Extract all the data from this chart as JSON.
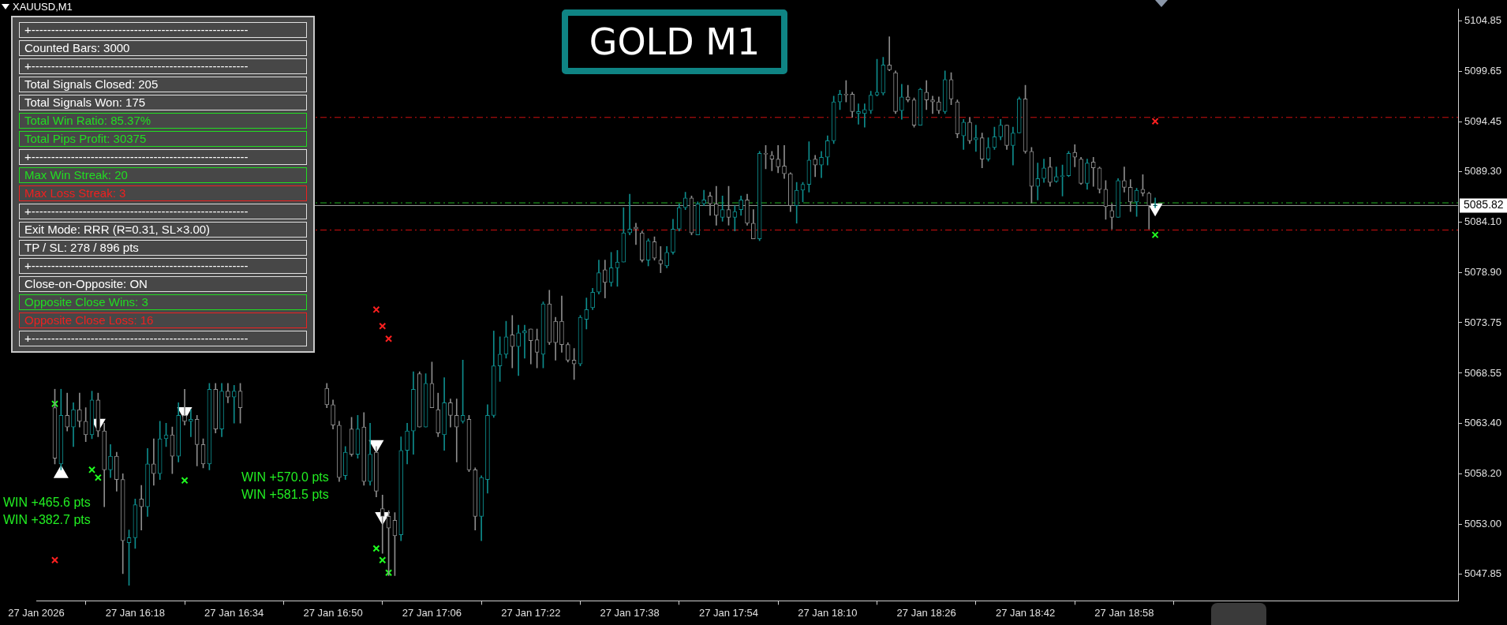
{
  "chart_data": {
    "type": "candlestick",
    "title": "GOLD M1",
    "subtitle": "XAUUSD,M1",
    "x": [
      "2026-01-27T16:05",
      "2026-01-27T16:06",
      "2026-01-27T16:07",
      "2026-01-27T16:08",
      "2026-01-27T16:09",
      "2026-01-27T16:10",
      "2026-01-27T16:11",
      "2026-01-27T16:12",
      "2026-01-27T16:13",
      "2026-01-27T16:14",
      "2026-01-27T16:15",
      "2026-01-27T16:16",
      "2026-01-27T16:17",
      "2026-01-27T16:18",
      "2026-01-27T16:19",
      "2026-01-27T16:20",
      "2026-01-27T16:21",
      "2026-01-27T16:22",
      "2026-01-27T16:23",
      "2026-01-27T16:24",
      "2026-01-27T16:25",
      "2026-01-27T16:26",
      "2026-01-27T16:27",
      "2026-01-27T16:28",
      "2026-01-27T16:29",
      "2026-01-27T16:30",
      "2026-01-27T16:31",
      "2026-01-27T16:32",
      "2026-01-27T16:33",
      "2026-01-27T16:34",
      "2026-01-27T16:35",
      "2026-01-27T16:49",
      "2026-01-27T16:50",
      "2026-01-27T16:51",
      "2026-01-27T16:52",
      "2026-01-27T16:53",
      "2026-01-27T16:54",
      "2026-01-27T16:55",
      "2026-01-27T16:56",
      "2026-01-27T16:57",
      "2026-01-27T16:58",
      "2026-01-27T16:59",
      "2026-01-27T17:00",
      "2026-01-27T17:01",
      "2026-01-27T17:02",
      "2026-01-27T17:03",
      "2026-01-27T17:04",
      "2026-01-27T17:05",
      "2026-01-27T17:06",
      "2026-01-27T17:07",
      "2026-01-27T17:08",
      "2026-01-27T17:09",
      "2026-01-27T17:10",
      "2026-01-27T17:11",
      "2026-01-27T17:12",
      "2026-01-27T17:13",
      "2026-01-27T17:14",
      "2026-01-27T17:15",
      "2026-01-27T17:16",
      "2026-01-27T17:17",
      "2026-01-27T17:18",
      "2026-01-27T17:19",
      "2026-01-27T17:20",
      "2026-01-27T17:21",
      "2026-01-27T17:22",
      "2026-01-27T17:23",
      "2026-01-27T17:24",
      "2026-01-27T17:25",
      "2026-01-27T17:26",
      "2026-01-27T17:27",
      "2026-01-27T17:28",
      "2026-01-27T17:29",
      "2026-01-27T17:30",
      "2026-01-27T17:31",
      "2026-01-27T17:32",
      "2026-01-27T17:33",
      "2026-01-27T17:34",
      "2026-01-27T17:35",
      "2026-01-27T17:36",
      "2026-01-27T17:37",
      "2026-01-27T17:38",
      "2026-01-27T17:39",
      "2026-01-27T17:40",
      "2026-01-27T17:41",
      "2026-01-27T17:42",
      "2026-01-27T17:43",
      "2026-01-27T17:44",
      "2026-01-27T17:45",
      "2026-01-27T17:46",
      "2026-01-27T17:47",
      "2026-01-27T17:48",
      "2026-01-27T17:49",
      "2026-01-27T17:50",
      "2026-01-27T17:51",
      "2026-01-27T17:52",
      "2026-01-27T17:53",
      "2026-01-27T17:54",
      "2026-01-27T17:55",
      "2026-01-27T17:56",
      "2026-01-27T17:57",
      "2026-01-27T17:58",
      "2026-01-27T17:59",
      "2026-01-27T18:00",
      "2026-01-27T18:01",
      "2026-01-27T18:02",
      "2026-01-27T18:03",
      "2026-01-27T18:04",
      "2026-01-27T18:05",
      "2026-01-27T18:06",
      "2026-01-27T18:07",
      "2026-01-27T18:08",
      "2026-01-27T18:09",
      "2026-01-27T18:10",
      "2026-01-27T18:11",
      "2026-01-27T18:12",
      "2026-01-27T18:13",
      "2026-01-27T18:14",
      "2026-01-27T18:15",
      "2026-01-27T18:16",
      "2026-01-27T18:17",
      "2026-01-27T18:18",
      "2026-01-27T18:19",
      "2026-01-27T18:20",
      "2026-01-27T18:21",
      "2026-01-27T18:22",
      "2026-01-27T18:23",
      "2026-01-27T18:24",
      "2026-01-27T18:25",
      "2026-01-27T18:26",
      "2026-01-27T18:27",
      "2026-01-27T18:28",
      "2026-01-27T18:29",
      "2026-01-27T18:30",
      "2026-01-27T18:31",
      "2026-01-27T18:32",
      "2026-01-27T18:33",
      "2026-01-27T18:34",
      "2026-01-27T18:35",
      "2026-01-27T18:36",
      "2026-01-27T18:37",
      "2026-01-27T18:38",
      "2026-01-27T18:39",
      "2026-01-27T18:40",
      "2026-01-27T18:41",
      "2026-01-27T18:42",
      "2026-01-27T18:43",
      "2026-01-27T18:44",
      "2026-01-27T18:45",
      "2026-01-27T18:46",
      "2026-01-27T18:47",
      "2026-01-27T18:48",
      "2026-01-27T18:49",
      "2026-01-27T18:50",
      "2026-01-27T18:51",
      "2026-01-27T18:52",
      "2026-01-27T18:53",
      "2026-01-27T18:54",
      "2026-01-27T18:55",
      "2026-01-27T18:56",
      "2026-01-27T18:57",
      "2026-01-27T18:58",
      "2026-01-27T18:59",
      "2026-01-27T19:00",
      "2026-01-27T19:01",
      "2026-01-27T19:02",
      "2026-01-27T19:03"
    ],
    "ohlc": [
      [
        5065.0,
        5066.9,
        5059.2,
        5059.8
      ],
      [
        5059.2,
        5066.9,
        5058.6,
        5064.2
      ],
      [
        5064.2,
        5066.5,
        5062.6,
        5063.0
      ],
      [
        5063.0,
        5065.5,
        5061.0,
        5064.8
      ],
      [
        5064.8,
        5066.5,
        5063.0,
        5063.6
      ],
      [
        5063.6,
        5065.0,
        5061.5,
        5062.2
      ],
      [
        5062.2,
        5066.7,
        5061.8,
        5065.8
      ],
      [
        5065.8,
        5066.5,
        5062.0,
        5062.6
      ],
      [
        5062.6,
        5063.4,
        5054.8,
        5058.6
      ],
      [
        5058.6,
        5061.2,
        5057.8,
        5060.0
      ],
      [
        5060.0,
        5060.4,
        5056.4,
        5057.6
      ],
      [
        5057.6,
        5058.2,
        5047.9,
        5051.3
      ],
      [
        5051.1,
        5052.4,
        5046.7,
        5051.6
      ],
      [
        5051.6,
        5055.6,
        5050.5,
        5055.0
      ],
      [
        5055.6,
        5057.0,
        5052.4,
        5054.8
      ],
      [
        5054.8,
        5060.8,
        5053.8,
        5059.2
      ],
      [
        5059.2,
        5061.8,
        5057.0,
        5058.2
      ],
      [
        5058.2,
        5063.6,
        5057.6,
        5061.8
      ],
      [
        5061.8,
        5063.4,
        5061.0,
        5062.2
      ],
      [
        5062.2,
        5063.0,
        5058.2,
        5060.0
      ],
      [
        5060.0,
        5065.5,
        5059.4,
        5064.2
      ],
      [
        5064.2,
        5066.9,
        5063.2,
        5063.6
      ],
      [
        5063.6,
        5064.8,
        5062.0,
        5063.8
      ],
      [
        5063.8,
        5064.2,
        5059.0,
        5061.2
      ],
      [
        5061.2,
        5061.8,
        5058.8,
        5059.2
      ],
      [
        5059.2,
        5067.5,
        5058.6,
        5066.9
      ],
      [
        5066.9,
        5067.5,
        5062.4,
        5062.8
      ],
      [
        5062.8,
        5067.5,
        5062.0,
        5066.7
      ],
      [
        5066.7,
        5067.5,
        5065.5,
        5066.1
      ],
      [
        5066.1,
        5067.3,
        5063.4,
        5066.7
      ],
      [
        5066.7,
        5067.5,
        5063.4,
        5065.0
      ],
      [
        5067.0,
        5067.5,
        5065.0,
        5065.3
      ],
      [
        5065.3,
        5065.8,
        5062.8,
        5063.2
      ],
      [
        5063.2,
        5063.6,
        5057.4,
        5057.8
      ],
      [
        5058.0,
        5061.0,
        5057.6,
        5060.4
      ],
      [
        5062.8,
        5064.0,
        5060.0,
        5060.2
      ],
      [
        5060.2,
        5064.2,
        5059.8,
        5062.8
      ],
      [
        5063.0,
        5064.5,
        5057.0,
        5057.4
      ],
      [
        5057.4,
        5063.4,
        5057.0,
        5060.2
      ],
      [
        5060.4,
        5061.0,
        5055.8,
        5056.4
      ],
      [
        5054.6,
        5056.0,
        5050.0,
        5053.8
      ],
      [
        5053.8,
        5054.4,
        5047.7,
        5052.6
      ],
      [
        5053.4,
        5054.2,
        5047.7,
        5051.8
      ],
      [
        5051.9,
        5062.0,
        5051.3,
        5060.6
      ],
      [
        5060.6,
        5063.4,
        5059.2,
        5062.6
      ],
      [
        5062.6,
        5068.7,
        5060.2,
        5066.9
      ],
      [
        5068.5,
        5068.7,
        5063.0,
        5063.0
      ],
      [
        5063.0,
        5068.5,
        5063.0,
        5067.5
      ],
      [
        5067.5,
        5069.7,
        5065.0,
        5065.0
      ],
      [
        5064.8,
        5066.5,
        5062.0,
        5062.4
      ],
      [
        5062.2,
        5068.1,
        5060.6,
        5065.5
      ],
      [
        5065.5,
        5065.9,
        5063.0,
        5064.2
      ],
      [
        5064.2,
        5065.9,
        5059.4,
        5063.0
      ],
      [
        5063.6,
        5069.9,
        5063.4,
        5064.2
      ],
      [
        5063.8,
        5064.2,
        5058.4,
        5058.6
      ],
      [
        5058.6,
        5058.8,
        5052.4,
        5053.8
      ],
      [
        5053.8,
        5058.0,
        5051.3,
        5057.8
      ],
      [
        5057.6,
        5065.3,
        5056.2,
        5064.2
      ],
      [
        5064.2,
        5072.9,
        5064.0,
        5069.3
      ],
      [
        5069.3,
        5072.3,
        5067.7,
        5070.5
      ],
      [
        5070.5,
        5073.9,
        5070.1,
        5072.3
      ],
      [
        5072.5,
        5074.5,
        5069.1,
        5071.3
      ],
      [
        5071.3,
        5073.5,
        5068.3,
        5072.7
      ],
      [
        5072.7,
        5073.5,
        5070.1,
        5072.9
      ],
      [
        5073.1,
        5073.1,
        5069.5,
        5071.9
      ],
      [
        5072.0,
        5073.1,
        5069.1,
        5070.7
      ],
      [
        5070.5,
        5075.9,
        5069.1,
        5075.7
      ],
      [
        5075.7,
        5077.1,
        5071.5,
        5071.7
      ],
      [
        5073.9,
        5074.3,
        5069.9,
        5071.7
      ],
      [
        5073.9,
        5076.5,
        5070.7,
        5071.5
      ],
      [
        5071.5,
        5071.7,
        5069.7,
        5069.9
      ],
      [
        5069.9,
        5071.1,
        5067.9,
        5069.5
      ],
      [
        5069.5,
        5074.5,
        5069.3,
        5074.3
      ],
      [
        5074.1,
        5076.3,
        5073.1,
        5075.1
      ],
      [
        5075.3,
        5077.3,
        5075.1,
        5076.9
      ],
      [
        5076.9,
        5080.2,
        5076.7,
        5078.9
      ],
      [
        5079.2,
        5080.2,
        5076.3,
        5077.9
      ],
      [
        5077.9,
        5081.0,
        5077.5,
        5079.4
      ],
      [
        5079.4,
        5081.2,
        5077.5,
        5080.0
      ],
      [
        5080.0,
        5085.6,
        5080.0,
        5083.0
      ],
      [
        5083.0,
        5087.0,
        5082.8,
        5083.4
      ],
      [
        5083.6,
        5084.0,
        5081.8,
        5083.4
      ],
      [
        5083.0,
        5083.2,
        5080.0,
        5080.2
      ],
      [
        5080.2,
        5082.4,
        5079.6,
        5082.2
      ],
      [
        5082.1,
        5082.6,
        5080.2,
        5080.4
      ],
      [
        5080.2,
        5081.6,
        5078.9,
        5079.8
      ],
      [
        5079.6,
        5081.6,
        5079.4,
        5081.0
      ],
      [
        5081.0,
        5084.4,
        5080.8,
        5083.4
      ],
      [
        5083.4,
        5086.0,
        5083.2,
        5085.6
      ],
      [
        5085.6,
        5087.2,
        5085.4,
        5086.6
      ],
      [
        5086.6,
        5086.8,
        5082.8,
        5083.0
      ],
      [
        5082.8,
        5086.2,
        5082.8,
        5086.0
      ],
      [
        5086.0,
        5087.4,
        5085.8,
        5086.4
      ],
      [
        5086.8,
        5087.2,
        5084.8,
        5086.0
      ],
      [
        5086.0,
        5087.8,
        5083.8,
        5084.8
      ],
      [
        5084.6,
        5086.8,
        5084.2,
        5085.4
      ],
      [
        5085.4,
        5087.8,
        5083.8,
        5084.6
      ],
      [
        5084.6,
        5085.8,
        5083.2,
        5085.2
      ],
      [
        5085.4,
        5086.8,
        5084.8,
        5086.4
      ],
      [
        5086.4,
        5087.0,
        5083.8,
        5084.0
      ],
      [
        5084.0,
        5085.4,
        5082.4,
        5082.4
      ],
      [
        5082.4,
        5091.4,
        5082.2,
        5091.2
      ],
      [
        5091.2,
        5092.0,
        5089.6,
        5091.1
      ],
      [
        5091.0,
        5091.4,
        5089.4,
        5090.6
      ],
      [
        5090.6,
        5092.0,
        5089.2,
        5089.8
      ],
      [
        5089.9,
        5092.0,
        5088.6,
        5089.1
      ],
      [
        5089.1,
        5089.2,
        5085.2,
        5085.8
      ],
      [
        5085.8,
        5088.2,
        5084.0,
        5087.4
      ],
      [
        5087.4,
        5088.2,
        5086.2,
        5088.0
      ],
      [
        5088.0,
        5092.4,
        5087.2,
        5090.5
      ],
      [
        5090.6,
        5091.0,
        5088.8,
        5090.0
      ],
      [
        5090.0,
        5091.4,
        5088.7,
        5090.8
      ],
      [
        5090.8,
        5093.0,
        5090.0,
        5092.5
      ],
      [
        5092.5,
        5097.1,
        5092.2,
        5096.5
      ],
      [
        5096.5,
        5097.7,
        5095.7,
        5097.3
      ],
      [
        5097.3,
        5098.7,
        5096.5,
        5097.2
      ],
      [
        5097.3,
        5097.5,
        5094.9,
        5095.5
      ],
      [
        5095.3,
        5096.3,
        5094.2,
        5095.5
      ],
      [
        5095.3,
        5096.3,
        5093.9,
        5095.7
      ],
      [
        5095.6,
        5097.6,
        5095.3,
        5097.2
      ],
      [
        5097.2,
        5100.9,
        5097.1,
        5097.5
      ],
      [
        5097.4,
        5101.1,
        5097.2,
        5100.3
      ],
      [
        5100.3,
        5103.2,
        5099.7,
        5099.8
      ],
      [
        5099.5,
        5099.7,
        5095.3,
        5095.5
      ],
      [
        5095.6,
        5098.3,
        5094.7,
        5097.0
      ],
      [
        5097.0,
        5098.2,
        5096.5,
        5096.7
      ],
      [
        5096.7,
        5096.9,
        5093.9,
        5094.1
      ],
      [
        5094.1,
        5097.9,
        5094.1,
        5097.8
      ],
      [
        5097.5,
        5098.7,
        5095.7,
        5096.7
      ],
      [
        5096.7,
        5097.1,
        5095.3,
        5096.5
      ],
      [
        5096.5,
        5097.0,
        5095.3,
        5095.6
      ],
      [
        5095.5,
        5099.7,
        5095.3,
        5098.8
      ],
      [
        5098.8,
        5099.5,
        5096.2,
        5096.8
      ],
      [
        5096.5,
        5096.7,
        5092.8,
        5093.2
      ],
      [
        5093.0,
        5094.7,
        5091.6,
        5094.4
      ],
      [
        5094.4,
        5094.9,
        5092.2,
        5092.5
      ],
      [
        5092.6,
        5094.1,
        5091.4,
        5092.8
      ],
      [
        5092.8,
        5093.3,
        5089.7,
        5090.6
      ],
      [
        5090.6,
        5092.8,
        5090.4,
        5091.8
      ],
      [
        5091.8,
        5093.9,
        5091.6,
        5092.9
      ],
      [
        5092.9,
        5094.7,
        5092.6,
        5094.1
      ],
      [
        5094.1,
        5094.1,
        5091.6,
        5092.0
      ],
      [
        5092.0,
        5093.9,
        5090.0,
        5093.3
      ],
      [
        5093.3,
        5097.0,
        5093.3,
        5096.8
      ],
      [
        5096.8,
        5098.2,
        5091.2,
        5091.4
      ],
      [
        5091.4,
        5091.8,
        5086.1,
        5087.8
      ],
      [
        5087.8,
        5090.2,
        5086.4,
        5088.6
      ],
      [
        5088.6,
        5090.6,
        5088.2,
        5089.7
      ],
      [
        5089.8,
        5090.8,
        5087.8,
        5088.2
      ],
      [
        5088.3,
        5089.8,
        5088.2,
        5088.8
      ],
      [
        5088.8,
        5090.0,
        5086.8,
        5088.9
      ],
      [
        5088.9,
        5091.4,
        5088.8,
        5091.2
      ],
      [
        5091.3,
        5092.1,
        5089.8,
        5090.8
      ],
      [
        5090.6,
        5090.8,
        5088.0,
        5088.1
      ],
      [
        5088.1,
        5090.6,
        5087.5,
        5090.2
      ],
      [
        5090.3,
        5090.8,
        5087.8,
        5089.7
      ],
      [
        5089.7,
        5089.8,
        5087.1,
        5087.5
      ],
      [
        5087.5,
        5088.4,
        5084.4,
        5085.7
      ],
      [
        5085.3,
        5086.0,
        5083.4,
        5084.6
      ],
      [
        5084.6,
        5088.6,
        5084.6,
        5088.4
      ],
      [
        5088.4,
        5089.8,
        5087.2,
        5087.7
      ],
      [
        5087.7,
        5088.5,
        5085.2,
        5086.2
      ],
      [
        5086.2,
        5087.6,
        5084.7,
        5087.4
      ],
      [
        5087.5,
        5089.0,
        5086.8,
        5087.1
      ],
      [
        5087.1,
        5087.2,
        5083.4,
        5085.8
      ],
      [
        5085.8,
        5086.6,
        5085.6,
        5085.82
      ]
    ],
    "colors": [
      "#8c8c8c",
      "#0e8c8c",
      "#8c8c8c",
      "#0e8c8c",
      "#8c8c8c",
      "#8c8c8c",
      "#0e8c8c",
      "#8c8c8c",
      "#8c8c8c",
      "#0e8c8c",
      "#8c8c8c",
      "#8c8c8c",
      "#0e8c8c",
      "#0e8c8c",
      "#8c8c8c",
      "#0e8c8c",
      "#8c8c8c",
      "#0e8c8c",
      "#0e8c8c",
      "#8c8c8c",
      "#0e8c8c",
      "#8c8c8c",
      "#0e8c8c",
      "#8c8c8c",
      "#8c8c8c",
      "#0e8c8c",
      "#8c8c8c",
      "#0e8c8c",
      "#8c8c8c",
      "#0e8c8c",
      "#8c8c8c",
      "#8c8c8c",
      "#8c8c8c",
      "#8c8c8c",
      "#0e8c8c",
      "#8c8c8c",
      "#0e8c8c",
      "#8c8c8c",
      "#0e8c8c",
      "#8c8c8c",
      "#8c8c8c",
      "#8c8c8c",
      "#8c8c8c",
      "#0e8c8c",
      "#0e8c8c",
      "#0e8c8c",
      "#8c8c8c",
      "#0e8c8c",
      "#8c8c8c",
      "#8c8c8c",
      "#0e8c8c",
      "#8c8c8c",
      "#8c8c8c",
      "#0e8c8c",
      "#8c8c8c",
      "#8c8c8c",
      "#0e8c8c",
      "#0e8c8c",
      "#0e8c8c",
      "#0e8c8c",
      "#0e8c8c",
      "#8c8c8c",
      "#0e8c8c",
      "#0e8c8c",
      "#8c8c8c",
      "#8c8c8c",
      "#0e8c8c",
      "#8c8c8c",
      "#8c8c8c",
      "#8c8c8c",
      "#8c8c8c",
      "#8c8c8c",
      "#0e8c8c",
      "#0e8c8c",
      "#0e8c8c",
      "#0e8c8c",
      "#8c8c8c",
      "#0e8c8c",
      "#0e8c8c",
      "#0e8c8c",
      "#0e8c8c",
      "#8c8c8c",
      "#8c8c8c",
      "#0e8c8c",
      "#8c8c8c",
      "#8c8c8c",
      "#0e8c8c",
      "#0e8c8c",
      "#0e8c8c",
      "#0e8c8c",
      "#8c8c8c",
      "#0e8c8c",
      "#0e8c8c",
      "#8c8c8c",
      "#8c8c8c",
      "#0e8c8c",
      "#8c8c8c",
      "#0e8c8c",
      "#0e8c8c",
      "#8c8c8c",
      "#8c8c8c",
      "#0e8c8c",
      "#8c8c8c",
      "#8c8c8c",
      "#8c8c8c",
      "#8c8c8c",
      "#8c8c8c",
      "#0e8c8c",
      "#0e8c8c",
      "#0e8c8c",
      "#8c8c8c",
      "#0e8c8c",
      "#0e8c8c",
      "#0e8c8c",
      "#0e8c8c",
      "#8c8c8c",
      "#8c8c8c",
      "#0e8c8c",
      "#0e8c8c",
      "#0e8c8c",
      "#0e8c8c",
      "#0e8c8c",
      "#8c8c8c",
      "#8c8c8c",
      "#0e8c8c",
      "#8c8c8c",
      "#8c8c8c",
      "#0e8c8c",
      "#8c8c8c",
      "#8c8c8c",
      "#8c8c8c",
      "#0e8c8c",
      "#8c8c8c",
      "#8c8c8c",
      "#0e8c8c",
      "#8c8c8c",
      "#0e8c8c",
      "#8c8c8c",
      "#0e8c8c",
      "#0e8c8c",
      "#0e8c8c",
      "#8c8c8c",
      "#0e8c8c",
      "#0e8c8c",
      "#8c8c8c",
      "#8c8c8c",
      "#0e8c8c",
      "#0e8c8c",
      "#8c8c8c",
      "#0e8c8c",
      "#0e8c8c",
      "#0e8c8c",
      "#8c8c8c",
      "#8c8c8c",
      "#0e8c8c",
      "#8c8c8c",
      "#8c8c8c",
      "#8c8c8c",
      "#8c8c8c",
      "#0e8c8c",
      "#8c8c8c",
      "#8c8c8c",
      "#0e8c8c",
      "#8c8c8c",
      "#8c8c8c",
      "#0e8c8c"
    ],
    "series": [
      {
        "type": "scatter",
        "color": "#ff2020",
        "marker": "cross",
        "x": [
          "2026-01-27T16:05",
          "2026-01-27T16:57",
          "2026-01-27T16:58",
          "2026-01-27T16:59",
          "2026-01-27T19:03"
        ],
        "values": [
          5049.3,
          5075.1,
          5073.4,
          5072.1,
          5094.5
        ]
      },
      {
        "type": "scatter",
        "color": "#20ff20",
        "marker": "cross",
        "x": [
          "2026-01-27T16:05",
          "2026-01-27T16:11",
          "2026-01-27T16:12",
          "2026-01-27T16:26",
          "2026-01-27T16:57",
          "2026-01-27T16:58",
          "2026-01-27T16:59",
          "2026-01-27T19:03"
        ],
        "values": [
          5065.4,
          5058.6,
          5057.8,
          5057.5,
          5050.5,
          5049.3,
          5048.0,
          5082.8
        ]
      },
      {
        "type": "scatter",
        "color": "#ffffff",
        "marker": "triangle",
        "x": [
          "2026-01-27T16:12",
          "2026-01-27T16:26",
          "2026-01-27T16:57",
          "2026-01-27T16:58",
          "2026-01-27T19:03"
        ],
        "values": [
          5063.4,
          5064.6,
          5061.2,
          5053.8,
          5085.6
        ]
      },
      {
        "type": "scatter",
        "color": "#ffffff",
        "marker": "triangle",
        "x": [
          "2026-01-27T16:06"
        ],
        "values": [
          5058.2
        ]
      }
    ],
    "xlim": [
      "2026-01-27T16:02",
      "2026-01-27T19:52"
    ],
    "xticks": [
      {
        "value": "2026-01-27T16:02",
        "label": "27 Jan 2026"
      },
      {
        "value": "2026-01-27T16:18",
        "label": "27 Jan 16:18"
      },
      {
        "value": "2026-01-27T16:34",
        "label": "27 Jan 16:34"
      },
      {
        "value": "2026-01-27T16:50",
        "label": "27 Jan 16:50"
      },
      {
        "value": "2026-01-27T17:06",
        "label": "27 Jan 17:06"
      },
      {
        "value": "2026-01-27T17:22",
        "label": "27 Jan 17:22"
      },
      {
        "value": "2026-01-27T17:38",
        "label": "27 Jan 17:38"
      },
      {
        "value": "2026-01-27T17:54",
        "label": "27 Jan 17:54"
      },
      {
        "value": "2026-01-27T18:10",
        "label": "27 Jan 18:10"
      },
      {
        "value": "2026-01-27T18:26",
        "label": "27 Jan 18:26"
      },
      {
        "value": "2026-01-27T18:42",
        "label": "27 Jan 18:42"
      },
      {
        "value": "2026-01-27T18:58",
        "label": "27 Jan 18:58"
      }
    ],
    "ylim": [
      5045.1,
      5106.1
    ],
    "yticks": [
      5047.85,
      {
        "value": 5053,
        "label": "5053.00"
      },
      {
        "value": 5058.2,
        "label": "5058.20"
      },
      {
        "value": 5063.4,
        "label": "5063.40"
      },
      5068.55,
      5073.75,
      {
        "value": 5078.9,
        "label": "5078.90"
      },
      {
        "value": 5084.1,
        "label": "5084.10"
      },
      {
        "value": 5089.3,
        "label": "5089.30"
      },
      5094.45,
      5099.65,
      5104.85
    ],
    "ref_lines": [
      {
        "axis": "y",
        "value": 5094.9,
        "color": "#d01010",
        "line_style": "dashed"
      },
      {
        "axis": "y",
        "value": 5086.1,
        "color": "#20b020",
        "line_style": "dashed"
      },
      {
        "axis": "y",
        "value": 5083.3,
        "color": "#d01010",
        "line_style": "dashed"
      },
      {
        "axis": "y",
        "value": 5085.82,
        "label": "5085.82",
        "color": "#9a9a9a",
        "line_style": "solid"
      }
    ],
    "annotations": [
      "+-------------------------------------------------------",
      "Counted Bars: 3000",
      "+-------------------------------------------------------",
      "Total Signals Closed: 205",
      "Total Signals Won: 175",
      "Total Win Ratio: 85.37%",
      "Total Pips Profit: 30375",
      "+-------------------------------------------------------",
      "Max Win Streak: 20",
      "Max Loss Streak: 3",
      "+-------------------------------------------------------",
      "Exit Mode: RRR  (R=0.31, SL×3.00)",
      "TP / SL:  278 / 896 pts",
      "+-------------------------------------------------------",
      "Close-on-Opposite: ON",
      "Opposite Close Wins: 3",
      "Opposite Close Loss: 16",
      "+-------------------------------------------------------",
      "WIN +465.6 pts",
      "WIN +382.7 pts",
      "WIN +570.0 pts",
      "WIN +581.5 pts"
    ],
    "grid": false,
    "legend": false
  }
}
